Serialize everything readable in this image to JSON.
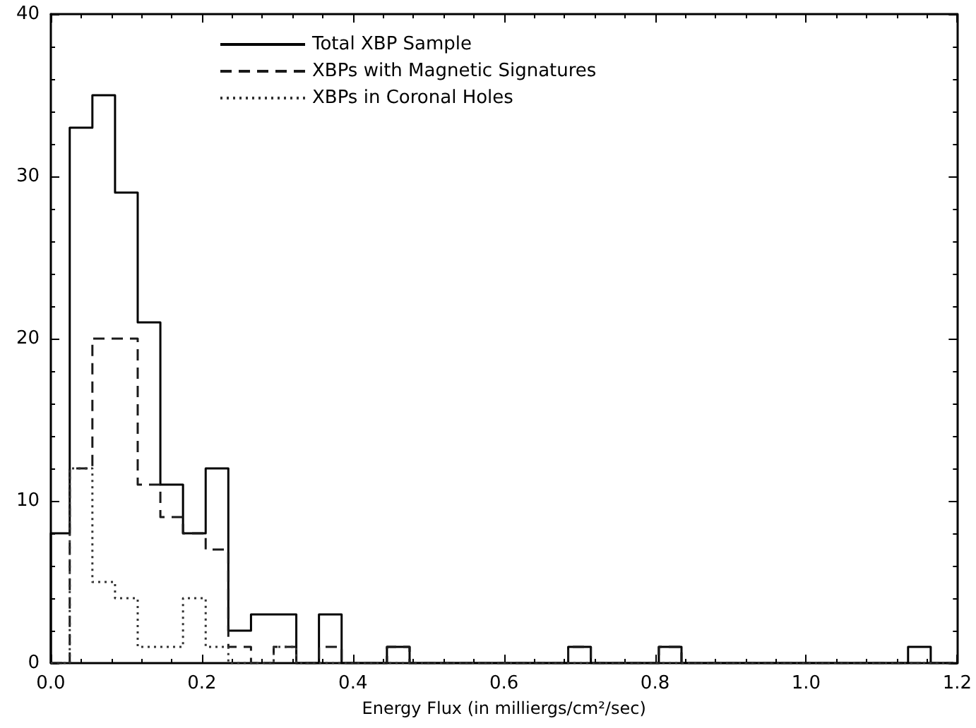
{
  "chart_data": {
    "type": "histogram",
    "xlabel": "Energy Flux (in milliergs/cm²/sec)",
    "bins": [
      0,
      0.025,
      0.055,
      0.085,
      0.115,
      0.145,
      0.175,
      0.205,
      0.235,
      0.265,
      0.295,
      0.325,
      0.355,
      0.385,
      0.415,
      0.445,
      0.475,
      0.505,
      0.535,
      0.565,
      0.595,
      0.625,
      0.655,
      0.685,
      0.715,
      0.745,
      0.775,
      0.805,
      0.835,
      0.865,
      0.895,
      0.925,
      0.955,
      0.985,
      1.015,
      1.045,
      1.075,
      1.105,
      1.135,
      1.165,
      1.195
    ],
    "series": [
      {
        "name": "Total XBP Sample",
        "color": "#000000",
        "line_style": "solid",
        "values": [
          8,
          33,
          35,
          29,
          21,
          11,
          8,
          12,
          2,
          3,
          3,
          0,
          3,
          0,
          0,
          1,
          0,
          0,
          0,
          0,
          0,
          0,
          0,
          1,
          0,
          0,
          0,
          1,
          0,
          0,
          0,
          0,
          0,
          0,
          0,
          0,
          0,
          0,
          1,
          0
        ]
      },
      {
        "name": "XBPs with Magnetic Signatures",
        "color": "#1a1a1a",
        "line_style": "dashed",
        "values": [
          0,
          12,
          20,
          20,
          11,
          9,
          8,
          7,
          1,
          0,
          1,
          0,
          1,
          0,
          0,
          1,
          0,
          0,
          0,
          0,
          0,
          0,
          0,
          1,
          0,
          0,
          0,
          1,
          0,
          0,
          0,
          0,
          0,
          0,
          0,
          0,
          0,
          0,
          0,
          0
        ]
      },
      {
        "name": "XBPs in Coronal Holes",
        "color": "#333333",
        "line_style": "dotted",
        "values": [
          0,
          12,
          5,
          4,
          1,
          1,
          4,
          1,
          0,
          0,
          1,
          0,
          0,
          0,
          0,
          0,
          0,
          0,
          0,
          0,
          0,
          0,
          0,
          0,
          0,
          0,
          0,
          0,
          0,
          0,
          0,
          0,
          0,
          0,
          0,
          0,
          0,
          0,
          0,
          0
        ]
      }
    ],
    "xlim": [
      0,
      1.2
    ],
    "xticks": [
      {
        "value": 0,
        "label": "0.0"
      },
      0.2,
      0.4,
      0.6,
      0.8,
      {
        "value": 1,
        "label": "1.0"
      },
      1.2
    ],
    "ylim": [
      0,
      40
    ],
    "yticks": [
      0,
      10,
      20,
      30,
      40
    ],
    "legend": "top left",
    "grid": false
  }
}
